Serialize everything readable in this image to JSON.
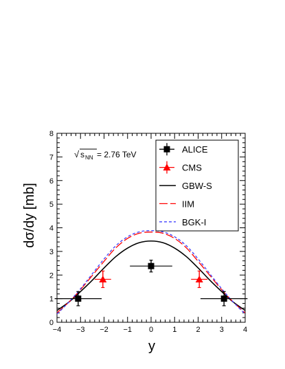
{
  "chart_data": {
    "type": "line",
    "xlabel": "y",
    "ylabel": "dσ/dy [mb]",
    "xlim": [
      -4,
      4
    ],
    "ylim": [
      0,
      8
    ],
    "x_ticks": [
      "−4",
      "−3",
      "−2",
      "−1",
      "0",
      "1",
      "2",
      "3",
      "4"
    ],
    "y_ticks": [
      "0",
      "1",
      "2",
      "3",
      "4",
      "5",
      "6",
      "7",
      "8"
    ],
    "grid": false,
    "legend_position": "top-right",
    "annotation": {
      "sqrt_symbol": "√",
      "s": "s",
      "subscript": "NN",
      "value": "= 2.76 TeV"
    },
    "series": [
      {
        "name": "ALICE",
        "kind": "points",
        "color": "#000000",
        "marker": "square",
        "points": [
          {
            "x": -3.1,
            "y": 1.0,
            "xerr": 1.0,
            "yerr": 0.3
          },
          {
            "x": 0.0,
            "y": 2.38,
            "xerr": 0.9,
            "yerr": 0.25
          },
          {
            "x": 3.1,
            "y": 1.0,
            "xerr": 1.0,
            "yerr": 0.3
          }
        ]
      },
      {
        "name": "CMS",
        "kind": "points",
        "color": "#ff0000",
        "marker": "triangle",
        "points": [
          {
            "x": -2.05,
            "y": 1.82,
            "xerr": 0.35,
            "yerr": 0.35
          },
          {
            "x": 2.05,
            "y": 1.82,
            "xerr": 0.35,
            "yerr": 0.35
          }
        ]
      },
      {
        "name": "GBW-S",
        "kind": "curve",
        "color": "#000000",
        "dash": "solid",
        "x": [
          -4,
          -3.5,
          -3,
          -2.5,
          -2,
          -1.5,
          -1,
          -0.5,
          0,
          0.5,
          1,
          1.5,
          2,
          2.5,
          3,
          3.5,
          4
        ],
        "y": [
          0.5,
          0.85,
          1.3,
          1.78,
          2.3,
          2.78,
          3.14,
          3.37,
          3.44,
          3.37,
          3.14,
          2.78,
          2.3,
          1.78,
          1.3,
          0.85,
          0.5
        ]
      },
      {
        "name": "IIM",
        "kind": "curve",
        "color": "#ff0000",
        "dash": "longdash",
        "x": [
          -4,
          -3.5,
          -3,
          -2.5,
          -2,
          -1.5,
          -1,
          -0.5,
          0,
          0.5,
          1,
          1.5,
          2,
          2.5,
          3,
          3.5,
          4
        ],
        "y": [
          0.4,
          0.85,
          1.38,
          1.98,
          2.58,
          3.15,
          3.55,
          3.77,
          3.82,
          3.77,
          3.55,
          3.15,
          2.58,
          1.98,
          1.38,
          0.85,
          0.4
        ]
      },
      {
        "name": "BGK-I",
        "kind": "curve",
        "color": "#4040ff",
        "dash": "shortdash",
        "x": [
          -4,
          -3.5,
          -3,
          -2.5,
          -2,
          -1.5,
          -1,
          -0.5,
          0,
          0.5,
          1,
          1.5,
          2,
          2.5,
          3,
          3.5,
          4
        ],
        "y": [
          0.35,
          0.85,
          1.42,
          2.05,
          2.68,
          3.24,
          3.62,
          3.83,
          3.88,
          3.83,
          3.62,
          3.24,
          2.68,
          2.05,
          1.42,
          0.85,
          0.35
        ]
      }
    ]
  }
}
